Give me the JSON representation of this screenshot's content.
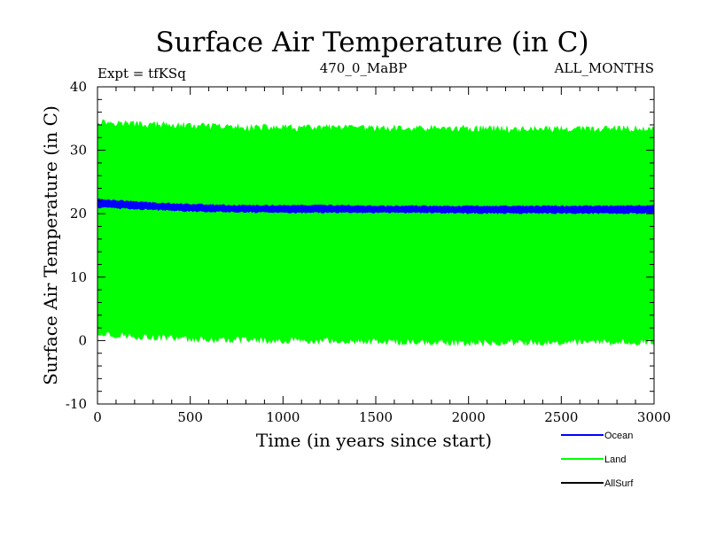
{
  "chart_data": {
    "type": "area",
    "title": "Surface Air Temperature (in C)",
    "subtitle_left": "Expt = tfKSq",
    "subtitle_center": "470_0_MaBP",
    "subtitle_right": "ALL_MONTHS",
    "xlabel": "Time (in years since start)",
    "ylabel": "Surface Air Temperature (in C)",
    "xlim": [
      0,
      3000
    ],
    "ylim": [
      -10,
      40
    ],
    "x_ticks": [
      0,
      500,
      1000,
      1500,
      2000,
      2500,
      3000
    ],
    "y_ticks": [
      -10,
      0,
      10,
      20,
      30,
      40
    ],
    "legend_position": "bottom-right",
    "series": [
      {
        "name": "Land",
        "color": "#00ff00",
        "render": "band",
        "x": [
          0,
          250,
          500,
          750,
          1000,
          1250,
          1500,
          1750,
          2000,
          2250,
          2500,
          2750,
          3000
        ],
        "upper": [
          34.5,
          34.0,
          33.8,
          33.6,
          33.5,
          33.5,
          33.4,
          33.4,
          33.4,
          33.3,
          33.3,
          33.3,
          33.3
        ],
        "lower": [
          1.2,
          0.6,
          0.3,
          0.1,
          0.0,
          0.0,
          -0.1,
          -0.2,
          -0.3,
          -0.3,
          -0.2,
          -0.2,
          -0.2
        ]
      },
      {
        "name": "Ocean",
        "color": "#0000ff",
        "render": "band",
        "x": [
          0,
          250,
          500,
          750,
          1000,
          1250,
          1500,
          1750,
          2000,
          2250,
          2500,
          2750,
          3000
        ],
        "upper": [
          22.3,
          21.8,
          21.5,
          21.3,
          21.3,
          21.3,
          21.2,
          21.2,
          21.2,
          21.2,
          21.2,
          21.2,
          21.3
        ],
        "lower": [
          21.0,
          20.7,
          20.4,
          20.3,
          20.2,
          20.2,
          20.2,
          20.2,
          20.1,
          20.1,
          20.1,
          20.1,
          20.1
        ]
      },
      {
        "name": "AllSurf",
        "color": "#000000",
        "render": "none",
        "x": [],
        "values": []
      }
    ],
    "legend_order": [
      "Ocean",
      "Land",
      "AllSurf"
    ]
  }
}
